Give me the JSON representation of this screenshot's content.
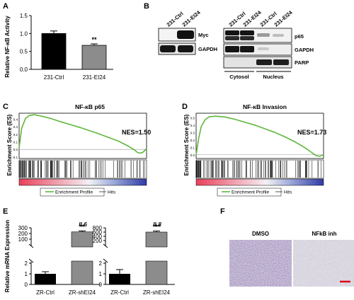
{
  "panels": {
    "A": {
      "label": "A",
      "chart_data": {
        "type": "bar",
        "ylabel": "Relative NF-κB Activity",
        "categories": [
          "231-Ctrl",
          "231-EI24"
        ],
        "values": [
          1.0,
          0.67
        ],
        "errors": [
          0.07,
          0.04
        ],
        "ylim": [
          0,
          1.5
        ],
        "yticks": [
          "0.0",
          "0.5",
          "1.0",
          "1.5"
        ],
        "significance": [
          "",
          "**"
        ],
        "colors": [
          "#000000",
          "#8c8c8c"
        ]
      }
    },
    "B": {
      "label": "B",
      "left_lanes": [
        "231-Ctrl",
        "231-EI24"
      ],
      "left_rows": [
        "Myc",
        "GAPDH"
      ],
      "right_lanes": [
        "231-Ctrl",
        "231-EI24",
        "231-Ctrl",
        "231-EI24"
      ],
      "right_rows": [
        "p65",
        "GAPDH",
        "PARP"
      ],
      "fractions": [
        "Cytosol",
        "Nucleus"
      ]
    },
    "C": {
      "label": "C",
      "title": "NF-κB p65",
      "nes": "NES=1.50",
      "ylabel": "Enrichment Score (ES)",
      "yticks": [
        "0.4",
        "0.3",
        "0.2",
        "0.1",
        "0.0",
        "-0.1"
      ],
      "legend": [
        "Enrichment Profile",
        "Hits"
      ],
      "chart_data": {
        "type": "line",
        "series": [
          {
            "x": [
              0,
              0.02,
              0.05,
              0.08,
              0.12,
              0.18,
              0.25,
              0.32,
              0.4,
              0.48,
              0.55,
              0.62,
              0.7,
              0.78,
              0.85,
              0.9,
              0.93,
              0.95,
              0.97,
              1.0
            ],
            "values": [
              0.02,
              0.28,
              0.41,
              0.45,
              0.46,
              0.44,
              0.41,
              0.37,
              0.33,
              0.29,
              0.25,
              0.21,
              0.16,
              0.11,
              0.05,
              0.0,
              -0.04,
              -0.05,
              -0.04,
              0.01
            ]
          }
        ],
        "ylim": [
          -0.12,
          0.48
        ]
      }
    },
    "D": {
      "label": "D",
      "title": "NF-κB Invasion",
      "nes": "NES=1.73",
      "ylabel": "Enrichment Score (ES)",
      "yticks": [
        "0.5",
        "0.4",
        "0.3",
        "0.2",
        "0.1",
        "0.0"
      ],
      "legend": [
        "Enrichment Profile",
        "Hits"
      ],
      "chart_data": {
        "type": "line",
        "series": [
          {
            "x": [
              0,
              0.02,
              0.04,
              0.07,
              0.1,
              0.15,
              0.22,
              0.3,
              0.38,
              0.46,
              0.54,
              0.62,
              0.7,
              0.78,
              0.85,
              0.9,
              0.94,
              0.97,
              1.0
            ],
            "values": [
              0.0,
              0.22,
              0.38,
              0.47,
              0.51,
              0.52,
              0.51,
              0.48,
              0.44,
              0.4,
              0.35,
              0.3,
              0.24,
              0.17,
              0.1,
              0.04,
              -0.01,
              -0.02,
              0.0
            ],
            "name": ""
          }
        ],
        "ylim": [
          -0.05,
          0.56
        ]
      }
    },
    "E": {
      "label": "E",
      "ylabel": "Relative mRNA Expression",
      "charts": [
        {
          "gene": "IL6",
          "chart_data": {
            "type": "bar",
            "categories": [
              "ZR-Ctrl",
              "ZR-shEI24"
            ],
            "values": [
              1.0,
              228
            ],
            "errors": [
              0.2,
              18
            ],
            "lower_ticks": [
              "0",
              "1",
              "2"
            ],
            "upper_ticks": [
              "100",
              "200",
              "300"
            ],
            "significance": [
              "",
              "**"
            ],
            "colors": [
              "#000000",
              "#8c8c8c"
            ]
          }
        },
        {
          "gene": "IL8",
          "chart_data": {
            "type": "bar",
            "categories": [
              "ZR-Ctrl",
              "ZR-shEI24"
            ],
            "values": [
              1.0,
              600
            ],
            "errors": [
              0.4,
              50
            ],
            "lower_ticks": [
              "0",
              "1",
              "2"
            ],
            "upper_ticks": [
              "200",
              "400",
              "600",
              "800"
            ],
            "significance": [
              "",
              "***"
            ],
            "colors": [
              "#000000",
              "#8c8c8c"
            ]
          }
        }
      ]
    },
    "F": {
      "label": "F",
      "images": [
        "DMSO",
        "NFkB inh"
      ],
      "scale_bar_color": "#e0001b"
    }
  }
}
